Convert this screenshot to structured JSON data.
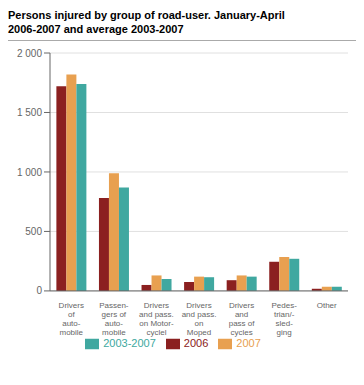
{
  "chart_data": {
    "type": "bar",
    "title": "Persons injured by group of road-user. January-April",
    "subtitle": "2006-2007 and average 2003-2007",
    "categories": [
      "Drivers\nof\nauto-\nmobile",
      "Passen-\ngers of\nauto-\nmobile",
      "Drivers\nand pass.\non Motor-\ncyclel",
      "Drivers\nand pass.\non\nMoped",
      "Drivers\nand\npass of\ncycles",
      "Pedes-\ntrian/-\nsled-\nging",
      "Other"
    ],
    "series": [
      {
        "name": "2006",
        "color": "#8B2020",
        "values": [
          1720,
          780,
          50,
          75,
          90,
          245,
          18
        ]
      },
      {
        "name": "2007",
        "color": "#E8A050",
        "values": [
          1820,
          990,
          130,
          120,
          130,
          285,
          35
        ]
      },
      {
        "name": "2003-2007",
        "color": "#40A8A0",
        "values": [
          1740,
          870,
          100,
          115,
          120,
          270,
          35
        ]
      }
    ],
    "ylim": [
      0,
      2000
    ],
    "yticks": [
      0,
      500,
      {
        "value": 1000,
        "label": "1 000"
      },
      {
        "value": 1500,
        "label": "1 500"
      },
      {
        "value": 2000,
        "label": "2 000"
      }
    ],
    "grid": true,
    "legend": "bottom"
  }
}
